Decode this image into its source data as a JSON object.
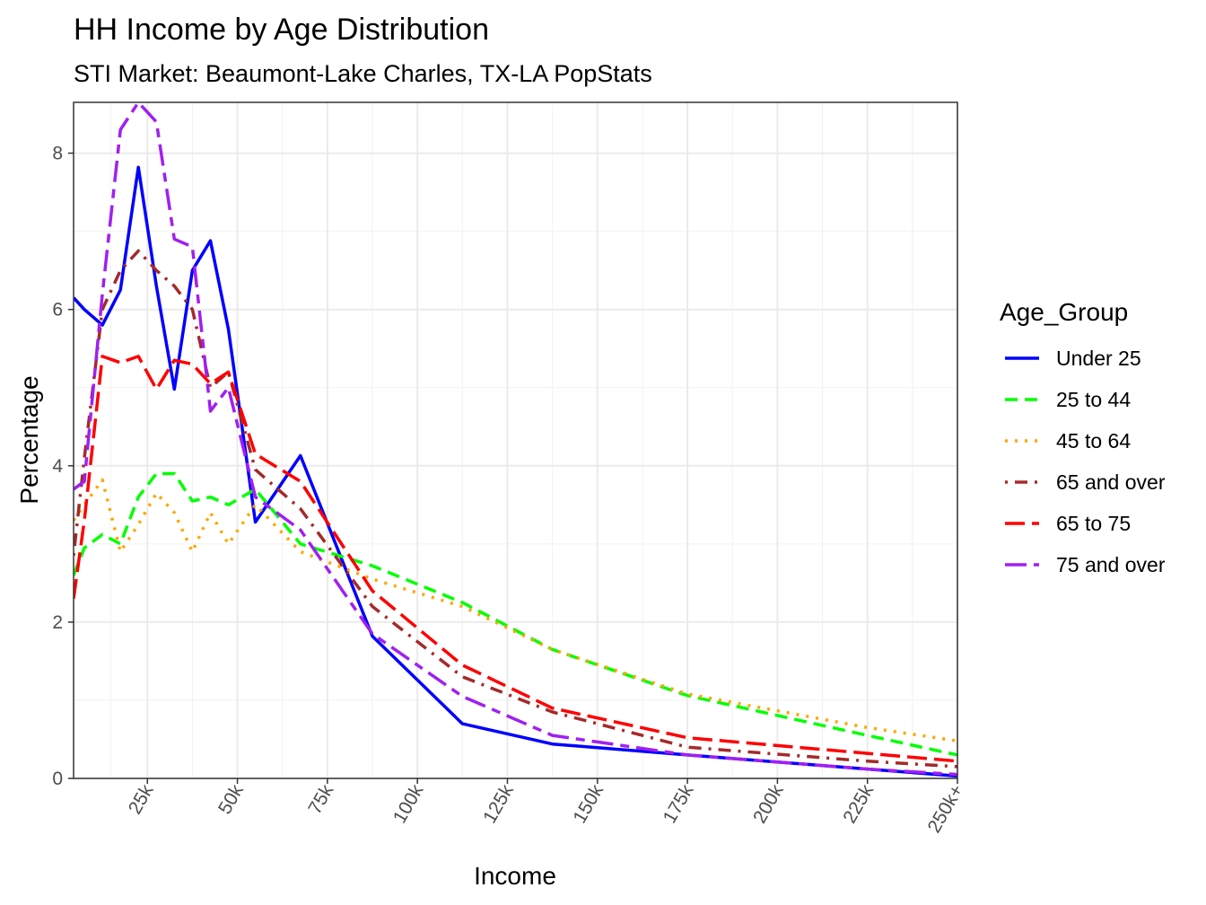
{
  "chart_data": {
    "type": "line",
    "title": "HH Income by Age Distribution",
    "subtitle": "STI Market: Beaumont-Lake Charles, TX-LA PopStats",
    "xlabel": "Income",
    "ylabel": "Percentage",
    "xlim": [
      4500,
      250000
    ],
    "ylim": [
      0,
      8.65
    ],
    "x_ticks": [
      25000,
      50000,
      75000,
      100000,
      125000,
      150000,
      175000,
      200000,
      225000,
      250000
    ],
    "x_tick_labels": [
      "25k",
      "50k",
      "75k",
      "100k",
      "125k",
      "150k",
      "175k",
      "200k",
      "225k",
      "250k+"
    ],
    "y_ticks": [
      0,
      2,
      4,
      6,
      8
    ],
    "y_tick_labels": [
      "0",
      "2",
      "4",
      "6",
      "8"
    ],
    "grid": true,
    "legend_title": "Age_Group",
    "legend_position": "right",
    "x": [
      4500,
      7500,
      12500,
      17500,
      22500,
      27500,
      32500,
      37500,
      42500,
      47500,
      55000,
      67500,
      87500,
      112500,
      137500,
      175000,
      225000,
      250000
    ],
    "series": [
      {
        "name": "Under 25",
        "color": "#0000FF",
        "dash": "solid",
        "values": [
          6.15,
          6.0,
          5.8,
          6.25,
          7.82,
          6.3,
          4.98,
          6.5,
          6.88,
          5.75,
          3.28,
          4.13,
          1.82,
          0.7,
          0.44,
          0.3,
          0.12,
          0.03
        ]
      },
      {
        "name": "25 to 44",
        "color": "#00FF00",
        "dash": "dashed",
        "values": [
          2.6,
          2.95,
          3.12,
          3.0,
          3.6,
          3.9,
          3.9,
          3.55,
          3.6,
          3.5,
          3.7,
          3.0,
          2.72,
          2.25,
          1.65,
          1.06,
          0.55,
          0.3
        ]
      },
      {
        "name": "45 to 64",
        "color": "#FFA500",
        "dash": "dotted",
        "values": [
          3.3,
          3.5,
          3.82,
          2.9,
          3.25,
          3.65,
          3.4,
          2.9,
          3.4,
          3.0,
          3.5,
          2.9,
          2.55,
          2.2,
          1.65,
          1.08,
          0.65,
          0.48
        ]
      },
      {
        "name": "65 and over",
        "color": "#A52A2A",
        "dash": "dotdash",
        "values": [
          2.85,
          4.1,
          6.0,
          6.5,
          6.75,
          6.5,
          6.3,
          6.0,
          5.0,
          5.2,
          3.95,
          3.45,
          2.2,
          1.3,
          0.85,
          0.4,
          0.22,
          0.15
        ]
      },
      {
        "name": "65 to 75",
        "color": "#FF0000",
        "dash": "longdash",
        "values": [
          2.3,
          3.3,
          5.4,
          5.32,
          5.4,
          4.98,
          5.35,
          5.3,
          5.05,
          5.2,
          4.15,
          3.8,
          2.4,
          1.45,
          0.9,
          0.52,
          0.32,
          0.22
        ]
      },
      {
        "name": "75 and over",
        "color": "#A020F0",
        "dash": "twodash",
        "values": [
          3.7,
          3.8,
          6.2,
          8.3,
          8.65,
          8.4,
          6.9,
          6.8,
          4.7,
          5.0,
          3.6,
          3.18,
          1.85,
          1.05,
          0.55,
          0.3,
          0.12,
          0.05
        ]
      }
    ]
  }
}
